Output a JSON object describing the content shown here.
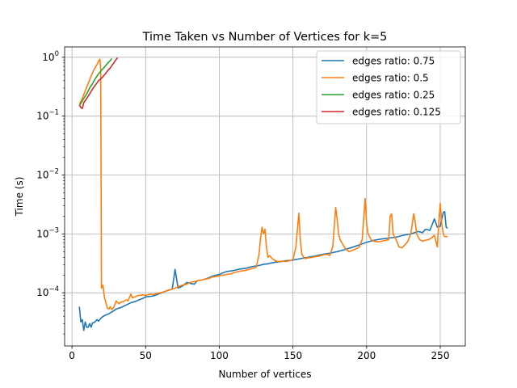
{
  "chart_data": {
    "type": "line",
    "title": "Time Taken vs Number of Vertices for k=5",
    "xlabel": "Number of vertices",
    "ylabel": "Time (s)",
    "xlim": [
      -5,
      267
    ],
    "ylim": [
      1.25e-05,
      1.5
    ],
    "yscale": "log",
    "grid": true,
    "legend_position": "top-right",
    "xticks": [
      0,
      50,
      100,
      150,
      200,
      250
    ],
    "yticks": [
      {
        "value": 0.0001,
        "base": "10",
        "exp": "−4"
      },
      {
        "value": 0.001,
        "base": "10",
        "exp": "−3"
      },
      {
        "value": 0.01,
        "base": "10",
        "exp": "−2"
      },
      {
        "value": 0.1,
        "base": "10",
        "exp": "−1"
      },
      {
        "value": 1,
        "base": "10",
        "exp": "0"
      }
    ],
    "series": [
      {
        "name": "edges ratio: 0.75",
        "color": "#1f77b4",
        "points": [
          [
            5,
            5.8e-05
          ],
          [
            6,
            3.2e-05
          ],
          [
            7,
            3.5e-05
          ],
          [
            8,
            2.3e-05
          ],
          [
            9,
            3.2e-05
          ],
          [
            10,
            2.6e-05
          ],
          [
            11,
            2.6e-05
          ],
          [
            12,
            3e-05
          ],
          [
            13,
            2.6e-05
          ],
          [
            14,
            3.1e-05
          ],
          [
            15,
            3.1e-05
          ],
          [
            16,
            3.3e-05
          ],
          [
            17,
            3.5e-05
          ],
          [
            18,
            3.3e-05
          ],
          [
            20,
            3.8e-05
          ],
          [
            22,
            4.1e-05
          ],
          [
            25,
            4.4e-05
          ],
          [
            28,
            4.9e-05
          ],
          [
            30,
            5.3e-05
          ],
          [
            33,
            5.6e-05
          ],
          [
            35,
            5.9e-05
          ],
          [
            38,
            6.4e-05
          ],
          [
            40,
            6.8e-05
          ],
          [
            43,
            7.1e-05
          ],
          [
            45,
            7.5e-05
          ],
          [
            48,
            8e-05
          ],
          [
            50,
            8.5e-05
          ],
          [
            55,
            8.8e-05
          ],
          [
            60,
            9.8e-05
          ],
          [
            65,
            0.00011
          ],
          [
            68,
            0.000115
          ],
          [
            70,
            0.00025
          ],
          [
            72,
            0.00012
          ],
          [
            75,
            0.00013
          ],
          [
            78,
            0.00015
          ],
          [
            80,
            0.000145
          ],
          [
            83,
            0.00014
          ],
          [
            85,
            0.00016
          ],
          [
            88,
            0.000165
          ],
          [
            90,
            0.00017
          ],
          [
            93,
            0.00018
          ],
          [
            95,
            0.00019
          ],
          [
            98,
            0.0002
          ],
          [
            100,
            0.000205
          ],
          [
            103,
            0.00022
          ],
          [
            105,
            0.00023
          ],
          [
            108,
            0.000235
          ],
          [
            110,
            0.00024
          ],
          [
            113,
            0.00025
          ],
          [
            115,
            0.000255
          ],
          [
            118,
            0.00026
          ],
          [
            120,
            0.00027
          ],
          [
            123,
            0.00028
          ],
          [
            125,
            0.000285
          ],
          [
            128,
            0.000295
          ],
          [
            130,
            0.000305
          ],
          [
            133,
            0.00031
          ],
          [
            135,
            0.00032
          ],
          [
            138,
            0.00033
          ],
          [
            140,
            0.000335
          ],
          [
            143,
            0.00034
          ],
          [
            145,
            0.00035
          ],
          [
            148,
            0.000355
          ],
          [
            150,
            0.00036
          ],
          [
            155,
            0.00038
          ],
          [
            160,
            0.0004
          ],
          [
            165,
            0.00042
          ],
          [
            170,
            0.00045
          ],
          [
            175,
            0.00047
          ],
          [
            180,
            0.0005
          ],
          [
            185,
            0.00054
          ],
          [
            190,
            0.00059
          ],
          [
            195,
            0.00065
          ],
          [
            200,
            0.00072
          ],
          [
            205,
            0.00078
          ],
          [
            210,
            0.00082
          ],
          [
            215,
            0.00085
          ],
          [
            220,
            0.00088
          ],
          [
            225,
            0.00095
          ],
          [
            230,
            0.001
          ],
          [
            235,
            0.0011
          ],
          [
            238,
            0.00105
          ],
          [
            240,
            0.0012
          ],
          [
            243,
            0.00115
          ],
          [
            246,
            0.0018
          ],
          [
            248,
            0.0013
          ],
          [
            250,
            0.00135
          ],
          [
            252,
            0.0023
          ],
          [
            253,
            0.0024
          ],
          [
            254,
            0.0013
          ],
          [
            255,
            0.00125
          ]
        ]
      },
      {
        "name": "edges ratio: 0.5",
        "color": "#ff7f0e",
        "points": [
          [
            5,
            0.16
          ],
          [
            7,
            0.2
          ],
          [
            9,
            0.27
          ],
          [
            11,
            0.36
          ],
          [
            13,
            0.48
          ],
          [
            15,
            0.62
          ],
          [
            17,
            0.75
          ],
          [
            18,
            0.85
          ],
          [
            19,
            0.93
          ],
          [
            19.5,
            0.6
          ],
          [
            20,
            0.00012
          ],
          [
            21,
            0.000135
          ],
          [
            22,
            8.5e-05
          ],
          [
            23,
            6.8e-05
          ],
          [
            24,
            5.5e-05
          ],
          [
            25,
            5.3e-05
          ],
          [
            26,
            5.8e-05
          ],
          [
            27,
            5.2e-05
          ],
          [
            28,
            5.5e-05
          ],
          [
            29,
            6.2e-05
          ],
          [
            30,
            7.3e-05
          ],
          [
            31,
            6.8e-05
          ],
          [
            32,
            6.5e-05
          ],
          [
            33,
            6.9e-05
          ],
          [
            35,
            7.1e-05
          ],
          [
            37,
            7.6e-05
          ],
          [
            38,
            7.3e-05
          ],
          [
            40,
            9.5e-05
          ],
          [
            41,
            8.2e-05
          ],
          [
            43,
            8.6e-05
          ],
          [
            45,
            9e-05
          ],
          [
            48,
            9.2e-05
          ],
          [
            50,
            9e-05
          ],
          [
            53,
            9.5e-05
          ],
          [
            55,
            9.3e-05
          ],
          [
            58,
            9.8e-05
          ],
          [
            60,
            0.0001
          ],
          [
            63,
            0.000105
          ],
          [
            65,
            0.00011
          ],
          [
            68,
            0.000115
          ],
          [
            70,
            0.00012
          ],
          [
            73,
            0.00013
          ],
          [
            75,
            0.000135
          ],
          [
            78,
            0.00014
          ],
          [
            80,
            0.00015
          ],
          [
            83,
            0.000155
          ],
          [
            85,
            0.00016
          ],
          [
            88,
            0.000165
          ],
          [
            90,
            0.00017
          ],
          [
            93,
            0.000175
          ],
          [
            95,
            0.000185
          ],
          [
            98,
            0.00019
          ],
          [
            100,
            0.000195
          ],
          [
            103,
            0.0002
          ],
          [
            105,
            0.000205
          ],
          [
            108,
            0.00021
          ],
          [
            110,
            0.00022
          ],
          [
            113,
            0.00023
          ],
          [
            115,
            0.000235
          ],
          [
            118,
            0.00024
          ],
          [
            120,
            0.00025
          ],
          [
            123,
            0.00026
          ],
          [
            125,
            0.00027
          ],
          [
            127,
            0.00045
          ],
          [
            128,
            0.00085
          ],
          [
            129,
            0.0013
          ],
          [
            130,
            0.001
          ],
          [
            131,
            0.0012
          ],
          [
            132,
            0.0006
          ],
          [
            133,
            0.0004
          ],
          [
            134,
            0.00043
          ],
          [
            136,
            0.00038
          ],
          [
            138,
            0.00035
          ],
          [
            140,
            0.00034
          ],
          [
            143,
            0.000345
          ],
          [
            145,
            0.00034
          ],
          [
            148,
            0.00035
          ],
          [
            150,
            0.00037
          ],
          [
            152,
            0.0006
          ],
          [
            154,
            0.00225
          ],
          [
            155,
            0.0008
          ],
          [
            156,
            0.00045
          ],
          [
            158,
            0.00038
          ],
          [
            160,
            0.00039
          ],
          [
            163,
            0.0004
          ],
          [
            165,
            0.00041
          ],
          [
            168,
            0.00042
          ],
          [
            170,
            0.00044
          ],
          [
            173,
            0.00045
          ],
          [
            175,
            0.00043
          ],
          [
            177,
            0.0006
          ],
          [
            179,
            0.0028
          ],
          [
            180,
            0.0018
          ],
          [
            181,
            0.001
          ],
          [
            182,
            0.0008
          ],
          [
            184,
            0.00065
          ],
          [
            186,
            0.00055
          ],
          [
            188,
            0.0005
          ],
          [
            190,
            0.00052
          ],
          [
            193,
            0.00056
          ],
          [
            195,
            0.0006
          ],
          [
            197,
            0.0008
          ],
          [
            199,
            0.004
          ],
          [
            200,
            0.0015
          ],
          [
            201,
            0.001
          ],
          [
            203,
            0.0008
          ],
          [
            205,
            0.00075
          ],
          [
            208,
            0.00073
          ],
          [
            210,
            0.00075
          ],
          [
            213,
            0.00078
          ],
          [
            215,
            0.0008
          ],
          [
            216,
            0.002
          ],
          [
            217,
            0.0022
          ],
          [
            218,
            0.001
          ],
          [
            220,
            0.0008
          ],
          [
            222,
            0.0006
          ],
          [
            224,
            0.00058
          ],
          [
            226,
            0.00065
          ],
          [
            228,
            0.00075
          ],
          [
            230,
            0.001
          ],
          [
            232,
            0.0022
          ],
          [
            233,
            0.0016
          ],
          [
            234,
            0.001
          ],
          [
            236,
            0.0008
          ],
          [
            238,
            0.00075
          ],
          [
            240,
            0.00078
          ],
          [
            242,
            0.0008
          ],
          [
            244,
            0.00085
          ],
          [
            246,
            0.00095
          ],
          [
            248,
            0.0006
          ],
          [
            249,
            0.0016
          ],
          [
            250,
            0.0033
          ],
          [
            251,
            0.0015
          ],
          [
            252,
            0.001
          ],
          [
            253,
            0.0009
          ],
          [
            255,
            0.0009
          ]
        ]
      },
      {
        "name": "edges ratio: 0.25",
        "color": "#2ca02c",
        "points": [
          [
            5,
            0.15
          ],
          [
            8,
            0.2
          ],
          [
            10,
            0.24
          ],
          [
            12,
            0.3
          ],
          [
            14,
            0.36
          ],
          [
            16,
            0.44
          ],
          [
            18,
            0.52
          ],
          [
            20,
            0.6
          ],
          [
            22,
            0.68
          ],
          [
            24,
            0.78
          ],
          [
            26,
            0.88
          ],
          [
            27,
            0.95
          ]
        ]
      },
      {
        "name": "edges ratio: 0.125",
        "color": "#d62728",
        "points": [
          [
            5,
            0.155
          ],
          [
            6,
            0.14
          ],
          [
            7,
            0.135
          ],
          [
            8,
            0.17
          ],
          [
            10,
            0.2
          ],
          [
            12,
            0.24
          ],
          [
            14,
            0.29
          ],
          [
            16,
            0.34
          ],
          [
            18,
            0.4
          ],
          [
            20,
            0.44
          ],
          [
            22,
            0.5
          ],
          [
            24,
            0.58
          ],
          [
            26,
            0.66
          ],
          [
            28,
            0.78
          ],
          [
            30,
            0.92
          ],
          [
            31,
            0.98
          ]
        ]
      }
    ]
  }
}
